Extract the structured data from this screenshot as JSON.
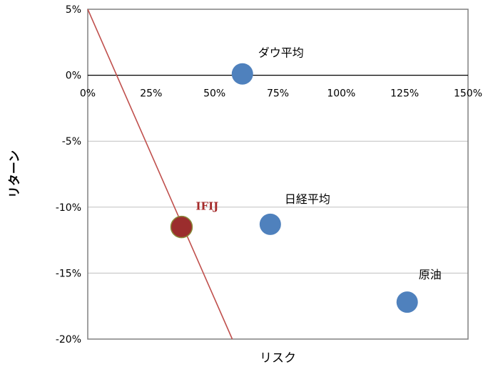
{
  "chart_data": {
    "type": "scatter",
    "title": "",
    "xlabel": "リスク",
    "ylabel": "リターン",
    "xlim": [
      0,
      150
    ],
    "ylim": [
      -20,
      5
    ],
    "x_ticks": [
      "0%",
      "25%",
      "50%",
      "75%",
      "100%",
      "125%",
      "150%"
    ],
    "x_tick_values": [
      0,
      25,
      50,
      75,
      100,
      125,
      150
    ],
    "y_ticks": [
      "5%",
      "0%",
      "-5%",
      "-10%",
      "-15%",
      "-20%"
    ],
    "y_tick_values": [
      5,
      0,
      -5,
      -10,
      -15,
      -20
    ],
    "grid": "horizontal",
    "points": [
      {
        "label": "ダウ平均",
        "x": 61,
        "y": 0.1,
        "color": "#4f81bd"
      },
      {
        "label": "IFIJ",
        "x": 37,
        "y": -11.5,
        "color": "#9b2d2d",
        "highlight": true
      },
      {
        "label": "日経平均",
        "x": 72,
        "y": -11.3,
        "color": "#4f81bd"
      },
      {
        "label": "原油",
        "x": 126,
        "y": -17.2,
        "color": "#4f81bd"
      }
    ],
    "line": {
      "x": [
        0,
        57
      ],
      "y": [
        5,
        -20
      ],
      "color": "#c0504d"
    }
  }
}
